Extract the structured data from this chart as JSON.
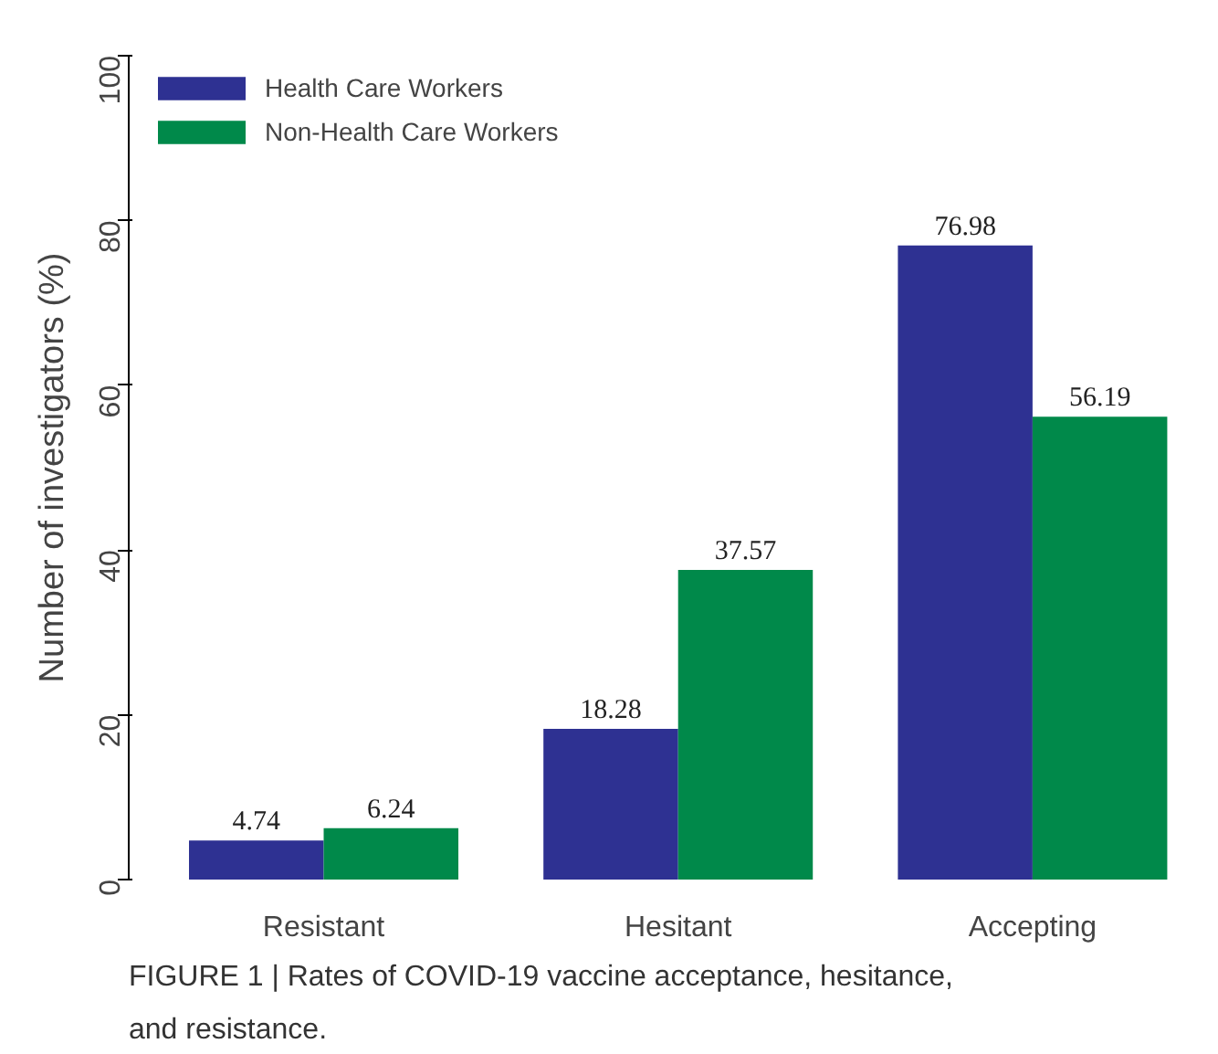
{
  "chart_data": {
    "type": "bar",
    "ylabel": "Number of investigators (%)",
    "categories": [
      "Resistant",
      "Hesitant",
      "Accepting"
    ],
    "series": [
      {
        "name": "Health Care Workers",
        "color": "#2e3192",
        "values": [
          4.74,
          18.28,
          76.98
        ]
      },
      {
        "name": "Non-Health Care Workers",
        "color": "#00894a",
        "values": [
          6.24,
          37.57,
          56.19
        ]
      }
    ],
    "ylim": [
      0,
      100
    ],
    "yticks": [
      0,
      20,
      40,
      60,
      80,
      100
    ],
    "grid": false,
    "legend": "top left",
    "data_labels": true,
    "annotations": [
      "FIGURE 1 | Rates of COVID-19 vaccine acceptance, hesitance,",
      "and resistance."
    ]
  }
}
